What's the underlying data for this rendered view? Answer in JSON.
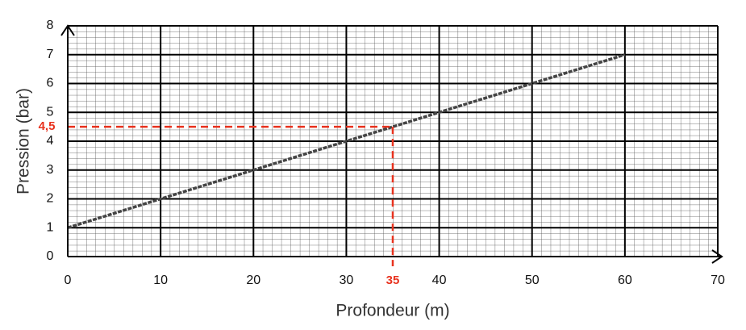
{
  "chart_data": {
    "type": "line",
    "xlabel": "Profondeur (m)",
    "ylabel": "Pression (bar)",
    "x": [
      0,
      10,
      20,
      30,
      40,
      50,
      60
    ],
    "series": [
      {
        "color": "#444444",
        "values": [
          1,
          2,
          3,
          4,
          5,
          6,
          7
        ]
      }
    ],
    "xlim": [
      0,
      70
    ],
    "xticks": [
      0,
      10,
      20,
      30,
      40,
      50,
      60,
      70
    ],
    "ylim": [
      0,
      8
    ],
    "yticks": [
      0,
      1,
      2,
      3,
      4,
      5,
      6,
      7,
      8
    ],
    "grid": true,
    "annotation": {
      "x": 35,
      "y": {
        "value": 4.5,
        "label": "4,5"
      },
      "color": "#e8321e"
    }
  }
}
